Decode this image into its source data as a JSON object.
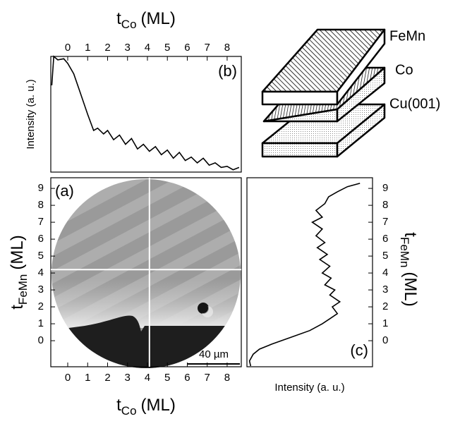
{
  "chart_data": [
    {
      "type": "line",
      "panel_label": "(b)",
      "x_label": {
        "base": "t",
        "sub": "Co",
        "unit": "(ML)"
      },
      "y_label": "Intensity (a. u.)",
      "xlim": [
        -0.85,
        8.71
      ],
      "ylim": [
        0,
        1
      ],
      "xticks": [
        0,
        1,
        2,
        3,
        4,
        5,
        6,
        7,
        8
      ],
      "color": "#000000",
      "x": [
        -0.8,
        -0.7,
        -0.5,
        -0.2,
        0,
        0.3,
        0.6,
        1.0,
        1.3,
        1.5,
        1.8,
        2.0,
        2.3,
        2.6,
        2.9,
        3.2,
        3.5,
        3.8,
        4.1,
        4.4,
        4.7,
        5.0,
        5.3,
        5.6,
        5.9,
        6.2,
        6.5,
        6.8,
        7.1,
        7.4,
        7.7,
        8.0,
        8.3,
        8.6
      ],
      "values": [
        0.75,
        1.0,
        0.97,
        0.98,
        0.94,
        0.85,
        0.7,
        0.5,
        0.36,
        0.38,
        0.33,
        0.36,
        0.28,
        0.32,
        0.24,
        0.29,
        0.2,
        0.24,
        0.18,
        0.22,
        0.15,
        0.19,
        0.12,
        0.17,
        0.1,
        0.13,
        0.08,
        0.12,
        0.06,
        0.08,
        0.04,
        0.05,
        0.02,
        0.04
      ]
    },
    {
      "type": "image",
      "panel_label": "(a)",
      "x_label": {
        "base": "t",
        "sub": "Co",
        "unit": "(ML)"
      },
      "y_label": {
        "base": "t",
        "sub": "FeMn",
        "unit": "(ML)"
      },
      "xlim": [
        -0.85,
        8.71
      ],
      "ylim": [
        -1.54,
        9.63
      ],
      "xticks": [
        0,
        1,
        2,
        3,
        4,
        5,
        6,
        7,
        8
      ],
      "yticks": [
        0,
        1,
        2,
        3,
        4,
        5,
        6,
        7,
        8,
        9
      ],
      "crosshair": {
        "x": 4.1,
        "y": 4.2
      },
      "scale_bar": "40 µm"
    },
    {
      "type": "vline",
      "panel_label": "(c)",
      "x_label": "Intensity (a. u.)",
      "y_label": {
        "base": "t",
        "sub": "FeMn",
        "unit": "(ML)"
      },
      "xlim": [
        0,
        1
      ],
      "ylim": [
        -1.54,
        9.63
      ],
      "yticks": [
        0,
        1,
        2,
        3,
        4,
        5,
        6,
        7,
        8,
        9
      ],
      "color": "#000000",
      "y": [
        -1.5,
        -1.2,
        -0.8,
        -0.5,
        -0.2,
        0.2,
        0.6,
        1.0,
        1.3,
        1.6,
        2.0,
        2.3,
        2.7,
        3.0,
        3.3,
        3.7,
        4.0,
        4.4,
        4.8,
        5.1,
        5.5,
        5.8,
        6.2,
        6.6,
        7.0,
        7.3,
        7.7,
        8.1,
        8.5,
        8.8,
        9.1,
        9.3
      ],
      "values": [
        0.03,
        0.02,
        0.05,
        0.1,
        0.2,
        0.35,
        0.5,
        0.6,
        0.66,
        0.72,
        0.68,
        0.74,
        0.66,
        0.7,
        0.62,
        0.67,
        0.6,
        0.66,
        0.58,
        0.64,
        0.56,
        0.62,
        0.55,
        0.6,
        0.52,
        0.6,
        0.55,
        0.62,
        0.65,
        0.72,
        0.8,
        0.9
      ]
    }
  ],
  "diagram": {
    "layers": [
      "FeMn",
      "Co",
      "Cu(001)"
    ]
  }
}
